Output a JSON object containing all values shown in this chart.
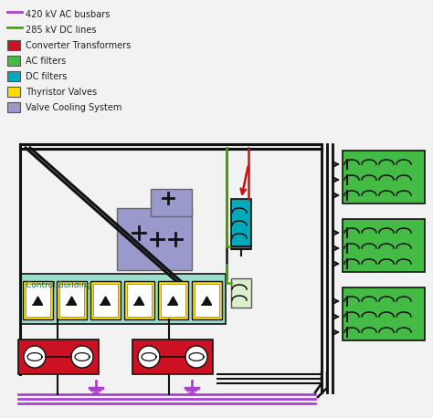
{
  "bg_color": "#f2f2f2",
  "colors": {
    "ac_busbar": "#aa44cc",
    "dc_red": "#cc1111",
    "dc_green": "#44aa00",
    "ac_filter": "#44bb44",
    "dc_filter": "#00aabb",
    "thyristor": "#ffdd00",
    "transformer": "#cc1122",
    "control": "#99ddcc",
    "cooling": "#9999cc",
    "black": "#111111",
    "white": "#ffffff",
    "line_gray": "#333333"
  },
  "legend": [
    {
      "label": "420 kV AC busbars",
      "color": "#aa44cc",
      "type": "line"
    },
    {
      "label": "285 kV DC lines",
      "color": "#44aa00",
      "type": "line"
    },
    {
      "label": "Converter Transformers",
      "color": "#cc1122",
      "type": "patch"
    },
    {
      "label": "AC filters",
      "color": "#44bb44",
      "type": "patch"
    },
    {
      "label": "DC filters",
      "color": "#00aabb",
      "type": "patch"
    },
    {
      "label": "Thyristor Valves",
      "color": "#ffdd00",
      "type": "patch"
    },
    {
      "label": "Valve Cooling System",
      "color": "#9999cc",
      "type": "patch"
    }
  ]
}
